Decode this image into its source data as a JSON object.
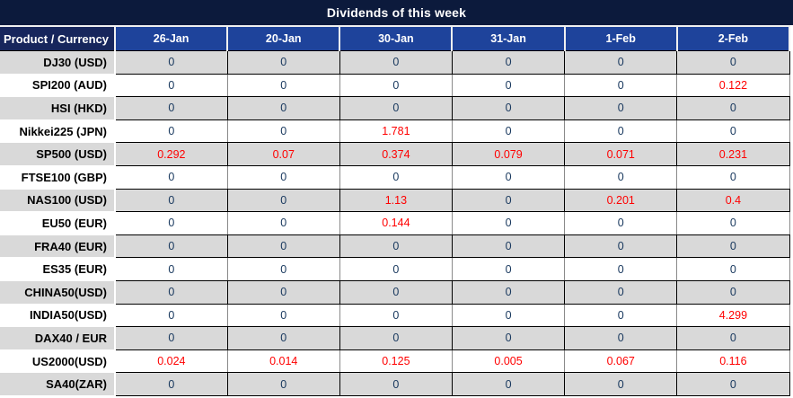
{
  "title": "Dividends of this week",
  "chart_data": {
    "type": "table",
    "title": "Dividends of this week",
    "corner_label": "Product / Currency",
    "columns": [
      "26-Jan",
      "20-Jan",
      "30-Jan",
      "31-Jan",
      "1-Feb",
      "2-Feb"
    ],
    "rows": [
      {
        "label": "DJ30 (USD)",
        "values": [
          "0",
          "0",
          "0",
          "0",
          "0",
          "0"
        ],
        "red": [
          false,
          false,
          false,
          false,
          false,
          false
        ]
      },
      {
        "label": "SPI200 (AUD)",
        "values": [
          "0",
          "0",
          "0",
          "0",
          "0",
          "0.122"
        ],
        "red": [
          false,
          false,
          false,
          false,
          false,
          true
        ]
      },
      {
        "label": "HSI (HKD)",
        "values": [
          "0",
          "0",
          "0",
          "0",
          "0",
          "0"
        ],
        "red": [
          false,
          false,
          false,
          false,
          false,
          false
        ]
      },
      {
        "label": "Nikkei225 (JPN)",
        "values": [
          "0",
          "0",
          "1.781",
          "0",
          "0",
          "0"
        ],
        "red": [
          false,
          false,
          true,
          false,
          false,
          false
        ]
      },
      {
        "label": "SP500 (USD)",
        "values": [
          "0.292",
          "0.07",
          "0.374",
          "0.079",
          "0.071",
          "0.231"
        ],
        "red": [
          true,
          true,
          true,
          true,
          true,
          true
        ]
      },
      {
        "label": "FTSE100 (GBP)",
        "values": [
          "0",
          "0",
          "0",
          "0",
          "0",
          "0"
        ],
        "red": [
          false,
          false,
          false,
          false,
          false,
          false
        ]
      },
      {
        "label": "NAS100 (USD)",
        "values": [
          "0",
          "0",
          "1.13",
          "0",
          "0.201",
          "0.4"
        ],
        "red": [
          false,
          false,
          true,
          false,
          true,
          true
        ]
      },
      {
        "label": "EU50 (EUR)",
        "values": [
          "0",
          "0",
          "0.144",
          "0",
          "0",
          "0"
        ],
        "red": [
          false,
          false,
          true,
          false,
          false,
          false
        ]
      },
      {
        "label": "FRA40 (EUR)",
        "values": [
          "0",
          "0",
          "0",
          "0",
          "0",
          "0"
        ],
        "red": [
          false,
          false,
          false,
          false,
          false,
          false
        ]
      },
      {
        "label": "ES35 (EUR)",
        "values": [
          "0",
          "0",
          "0",
          "0",
          "0",
          "0"
        ],
        "red": [
          false,
          false,
          false,
          false,
          false,
          false
        ]
      },
      {
        "label": "CHINA50(USD)",
        "values": [
          "0",
          "0",
          "0",
          "0",
          "0",
          "0"
        ],
        "red": [
          false,
          false,
          false,
          false,
          false,
          false
        ]
      },
      {
        "label": "INDIA50(USD)",
        "values": [
          "0",
          "0",
          "0",
          "0",
          "0",
          "4.299"
        ],
        "red": [
          false,
          false,
          false,
          false,
          false,
          true
        ]
      },
      {
        "label": "DAX40 / EUR",
        "values": [
          "0",
          "0",
          "0",
          "0",
          "0",
          "0"
        ],
        "red": [
          false,
          false,
          false,
          false,
          false,
          false
        ]
      },
      {
        "label": "US2000(USD)",
        "values": [
          "0.024",
          "0.014",
          "0.125",
          "0.005",
          "0.067",
          "0.116"
        ],
        "red": [
          true,
          true,
          true,
          true,
          true,
          true
        ]
      },
      {
        "label": "SA40(ZAR)",
        "values": [
          "0",
          "0",
          "0",
          "0",
          "0",
          "0"
        ],
        "red": [
          false,
          false,
          false,
          false,
          false,
          false
        ]
      }
    ]
  },
  "colors": {
    "title_bg": "#0C1A3C",
    "header_bg": "#1E439B",
    "corner_header_bg": "#17265C",
    "stripe_gray": "#D9D9D9",
    "row_white": "#FFFFFF",
    "value_text": "#17375D",
    "highlight_red": "#FF0000",
    "grid_gray": "#8A8A8A",
    "separator_white": "#F0F0F0"
  }
}
